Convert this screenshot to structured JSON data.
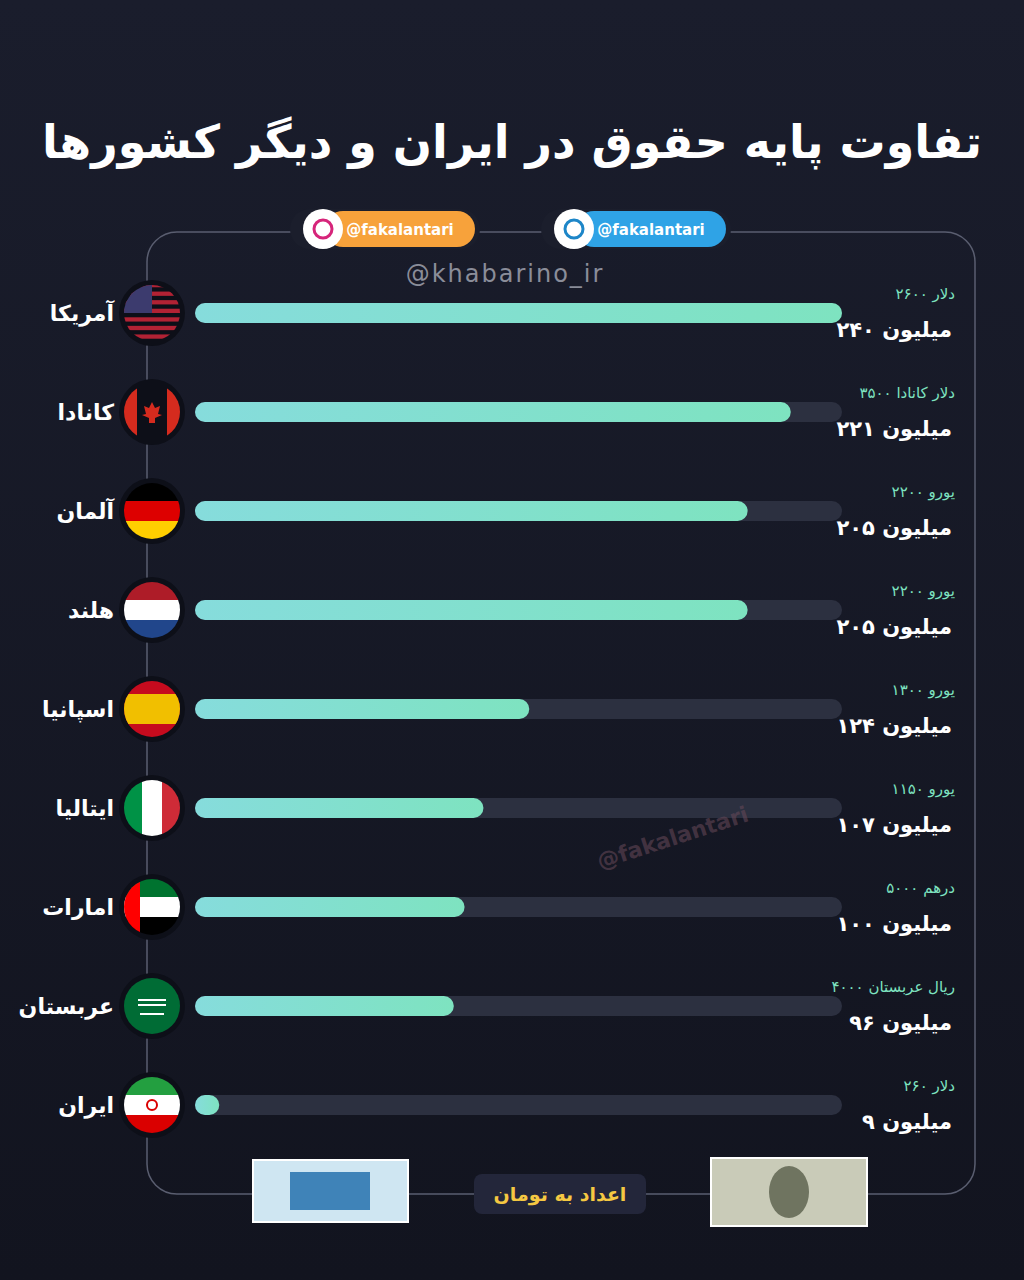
{
  "chart_data": {
    "type": "bar",
    "orientation": "horizontal",
    "title": "تفاوت پایه حقوق در ایران و دیگر کشورها",
    "xlabel": "اعداد به تومان",
    "annotations": [
      "@fakalantari",
      "@fakalantari",
      "@khabarino_ir",
      "@fakalantari"
    ],
    "categories": [
      "آمریکا",
      "کانادا",
      "آلمان",
      "هلند",
      "اسپانیا",
      "ایتالیا",
      "امارات",
      "عربستان",
      "ایران"
    ],
    "values": [
      240,
      221,
      205,
      205,
      124,
      107,
      100,
      96,
      9
    ],
    "value_labels": [
      "۲۴۰ میلیون",
      "۲۲۱ میلیون",
      "۲۰۵ میلیون",
      "۲۰۵ میلیون",
      "۱۲۴ میلیون",
      "۱۰۷ میلیون",
      "۱۰۰ میلیون",
      "۹۶ میلیون",
      "۹ میلیون"
    ],
    "currency_labels": [
      "۲۶۰۰ دلار",
      "۳۵۰۰ دلار کانادا",
      "۲۲۰۰ یورو",
      "۲۲۰۰ یورو",
      "۱۳۰۰ یورو",
      "۱۱۵۰ یورو",
      "۵۰۰۰ درهم",
      "۴۰۰۰ ریال عربستان",
      "۲۶۰ دلار"
    ],
    "xlim": [
      0,
      240
    ],
    "tick_labels": false,
    "grid": false,
    "data_labels": true,
    "color": "#7ee3c0"
  }
}
